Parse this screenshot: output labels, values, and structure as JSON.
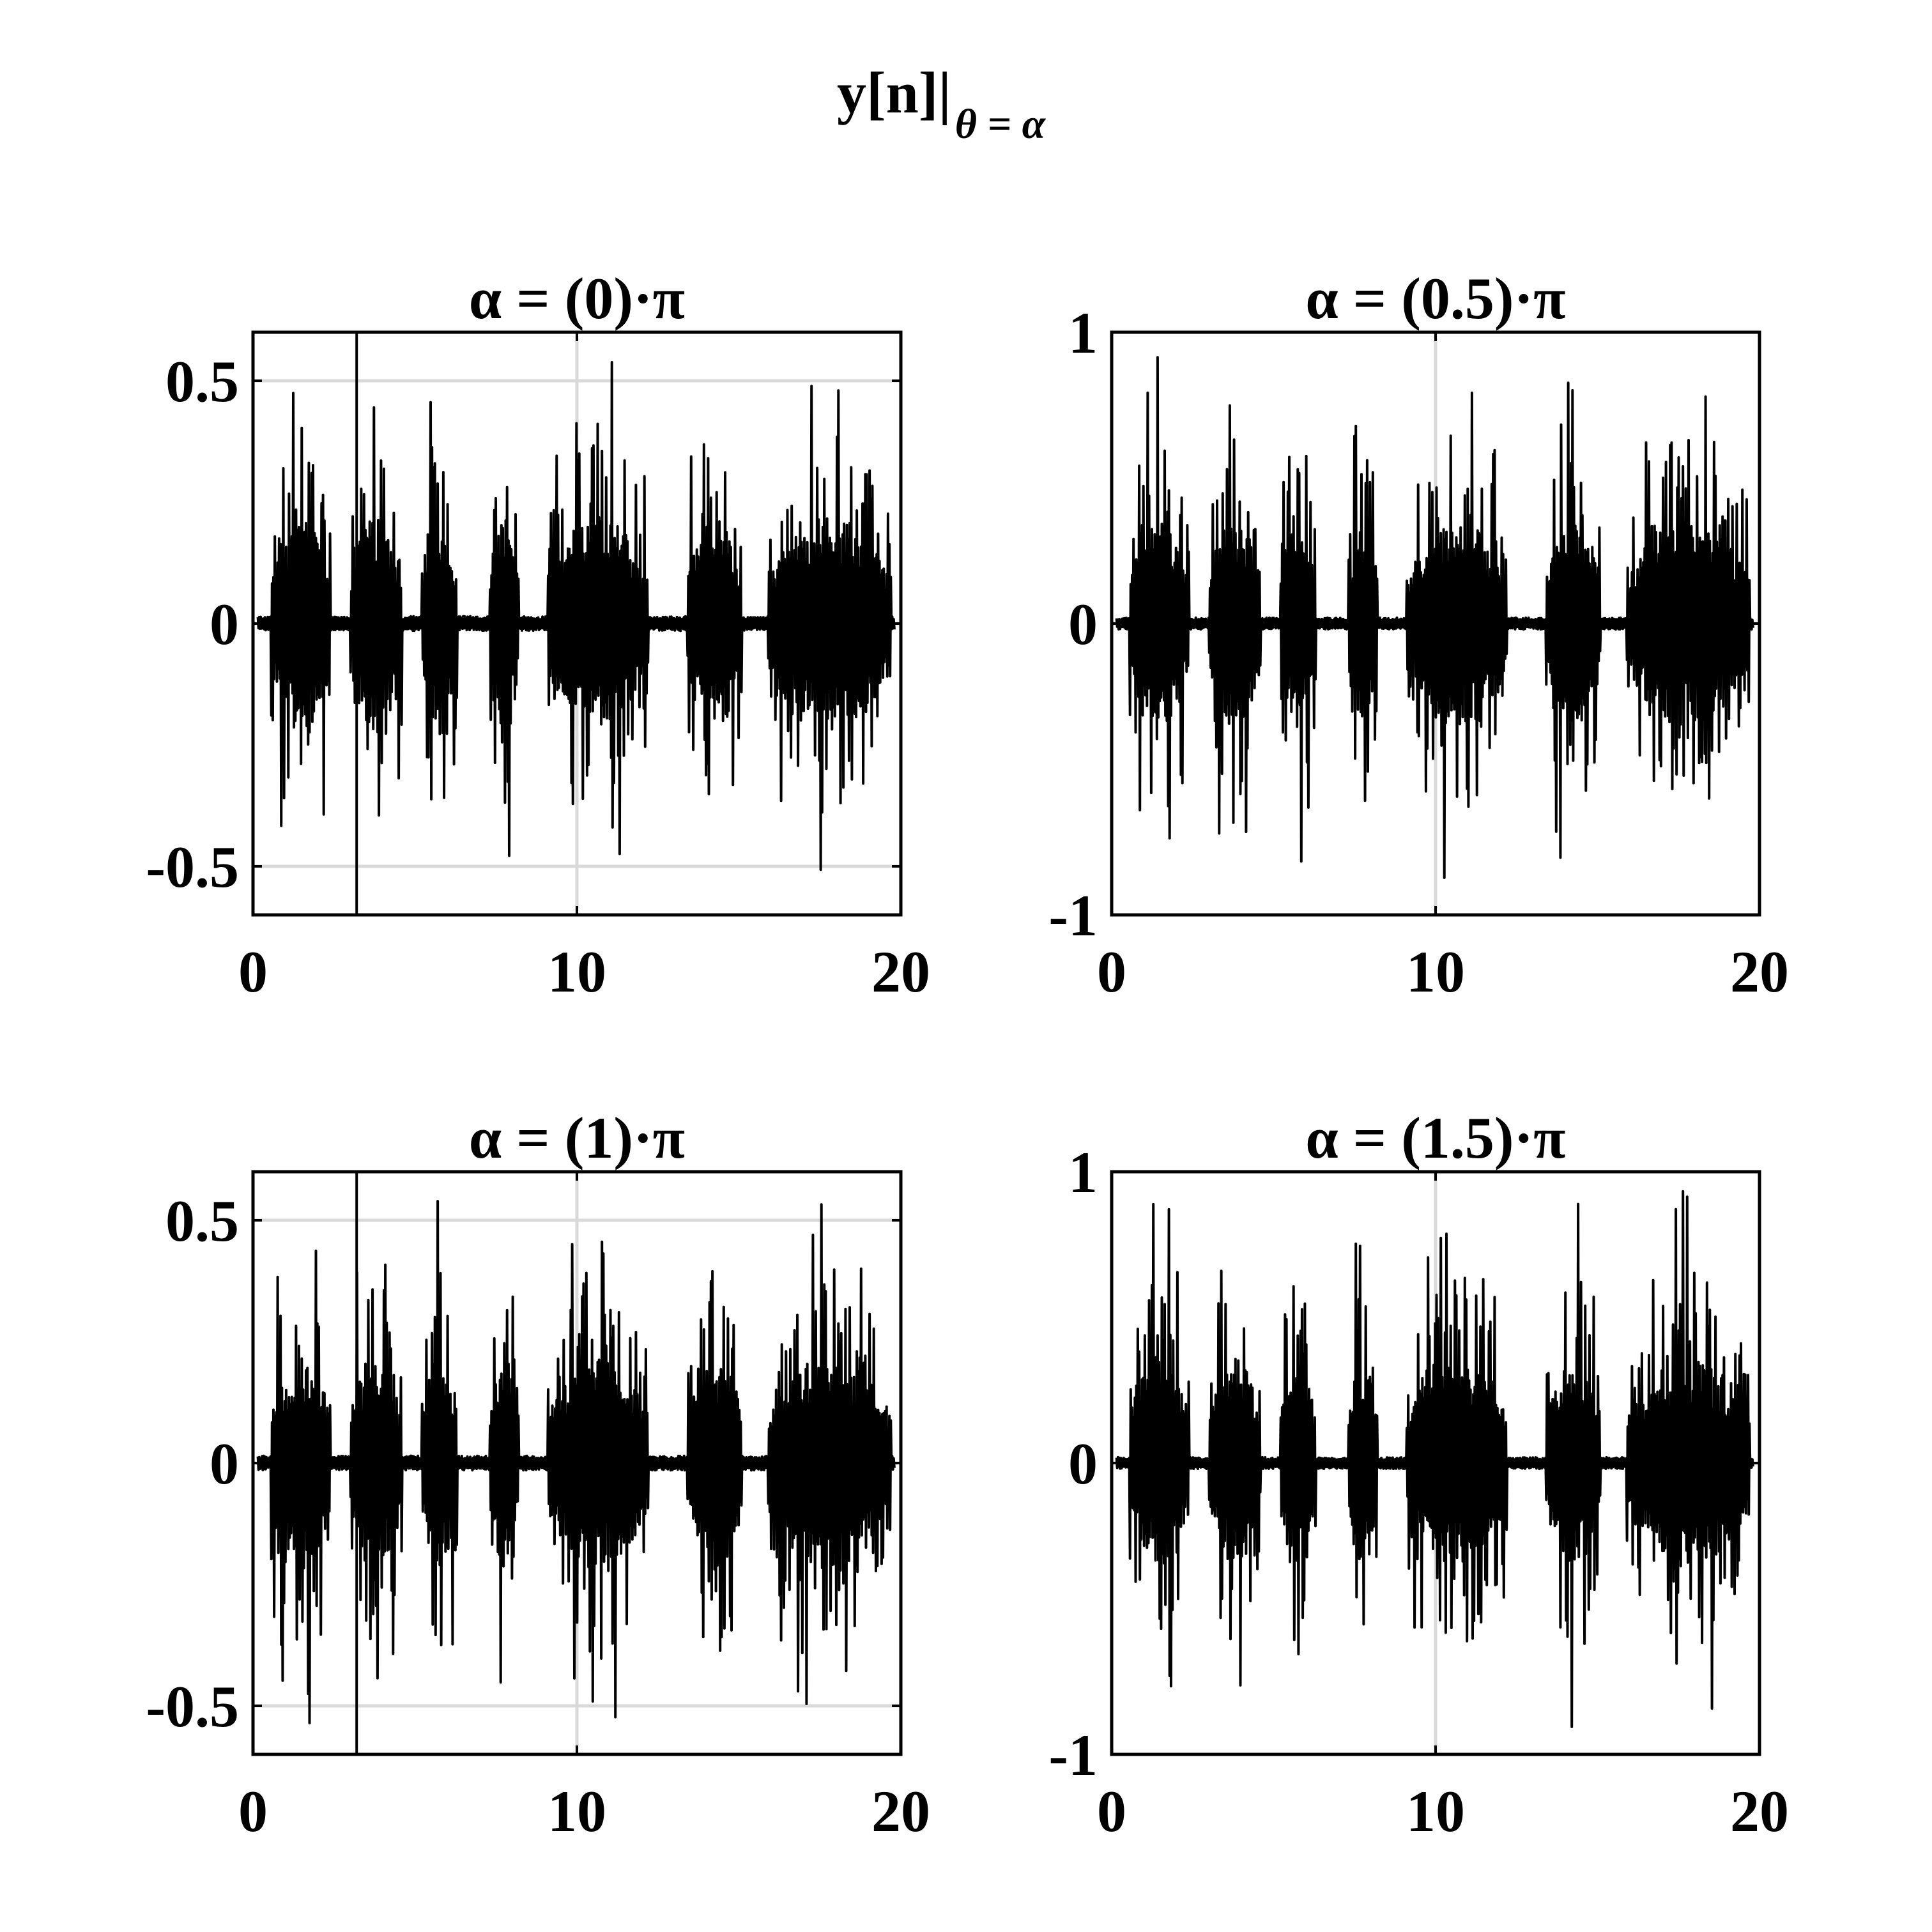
{
  "figure": {
    "title_main": "y[n]|",
    "title_sub": "θ = α"
  },
  "chart_data": [
    {
      "type": "line",
      "title": "α = (0)·π",
      "xlim": [
        0,
        20
      ],
      "ylim": [
        -0.6,
        0.6
      ],
      "xticks": [
        "0",
        "10",
        "20"
      ],
      "yticks": [
        "-0.5",
        "0",
        "0.5"
      ],
      "xtick_values": [
        0,
        10,
        20
      ],
      "ytick_values": [
        -0.5,
        0,
        0.5
      ],
      "grid": true,
      "vertical_marker_x": 3.2,
      "series": [
        {
          "color": "#000000",
          "bursts": [
            [
              0.55,
              2.4
            ],
            [
              3.0,
              4.6
            ],
            [
              5.2,
              6.3
            ],
            [
              7.3,
              8.2
            ],
            [
              9.1,
              12.2
            ],
            [
              13.4,
              15.1
            ],
            [
              15.9,
              19.7
            ]
          ],
          "peak_amplitude": 0.58,
          "noise_floor": 0.015
        }
      ]
    },
    {
      "type": "line",
      "title": "α = (0.5)·π",
      "xlim": [
        0,
        20
      ],
      "ylim": [
        -1,
        1
      ],
      "xticks": [
        "0",
        "10",
        "20"
      ],
      "yticks": [
        "-1",
        "0",
        "1"
      ],
      "xtick_values": [
        0,
        10,
        20
      ],
      "ytick_values": [
        -1,
        0,
        1
      ],
      "grid": true,
      "series": [
        {
          "color": "#000000",
          "bursts": [
            [
              0.55,
              2.4
            ],
            [
              3.0,
              4.6
            ],
            [
              5.2,
              6.3
            ],
            [
              7.3,
              8.2
            ],
            [
              9.1,
              12.2
            ],
            [
              13.4,
              15.1
            ],
            [
              15.9,
              19.7
            ]
          ],
          "peak_amplitude": 0.94,
          "noise_floor": 0.02
        }
      ]
    },
    {
      "type": "line",
      "title": "α = (1)·π",
      "xlim": [
        0,
        20
      ],
      "ylim": [
        -0.6,
        0.6
      ],
      "xticks": [
        "0",
        "10",
        "20"
      ],
      "yticks": [
        "-0.5",
        "0",
        "0.5"
      ],
      "xtick_values": [
        0,
        10,
        20
      ],
      "ytick_values": [
        -0.5,
        0,
        0.5
      ],
      "grid": true,
      "vertical_marker_x": 3.2,
      "series": [
        {
          "color": "#000000",
          "bursts": [
            [
              0.55,
              2.4
            ],
            [
              3.0,
              4.6
            ],
            [
              5.2,
              6.3
            ],
            [
              7.3,
              8.2
            ],
            [
              9.1,
              12.2
            ],
            [
              13.4,
              15.1
            ],
            [
              15.9,
              19.7
            ]
          ],
          "peak_amplitude": 0.58,
          "noise_floor": 0.015
        }
      ]
    },
    {
      "type": "line",
      "title": "α = (1.5)·π",
      "xlim": [
        0,
        20
      ],
      "ylim": [
        -1,
        1
      ],
      "xticks": [
        "0",
        "10",
        "20"
      ],
      "yticks": [
        "-1",
        "0",
        "1"
      ],
      "xtick_values": [
        0,
        10,
        20
      ],
      "ytick_values": [
        -1,
        0,
        1
      ],
      "grid": true,
      "series": [
        {
          "color": "#000000",
          "bursts": [
            [
              0.55,
              2.4
            ],
            [
              3.0,
              4.6
            ],
            [
              5.2,
              6.3
            ],
            [
              7.3,
              8.2
            ],
            [
              9.1,
              12.2
            ],
            [
              13.4,
              15.1
            ],
            [
              15.9,
              19.7
            ]
          ],
          "peak_amplitude": 0.94,
          "noise_floor": 0.02
        }
      ]
    }
  ]
}
